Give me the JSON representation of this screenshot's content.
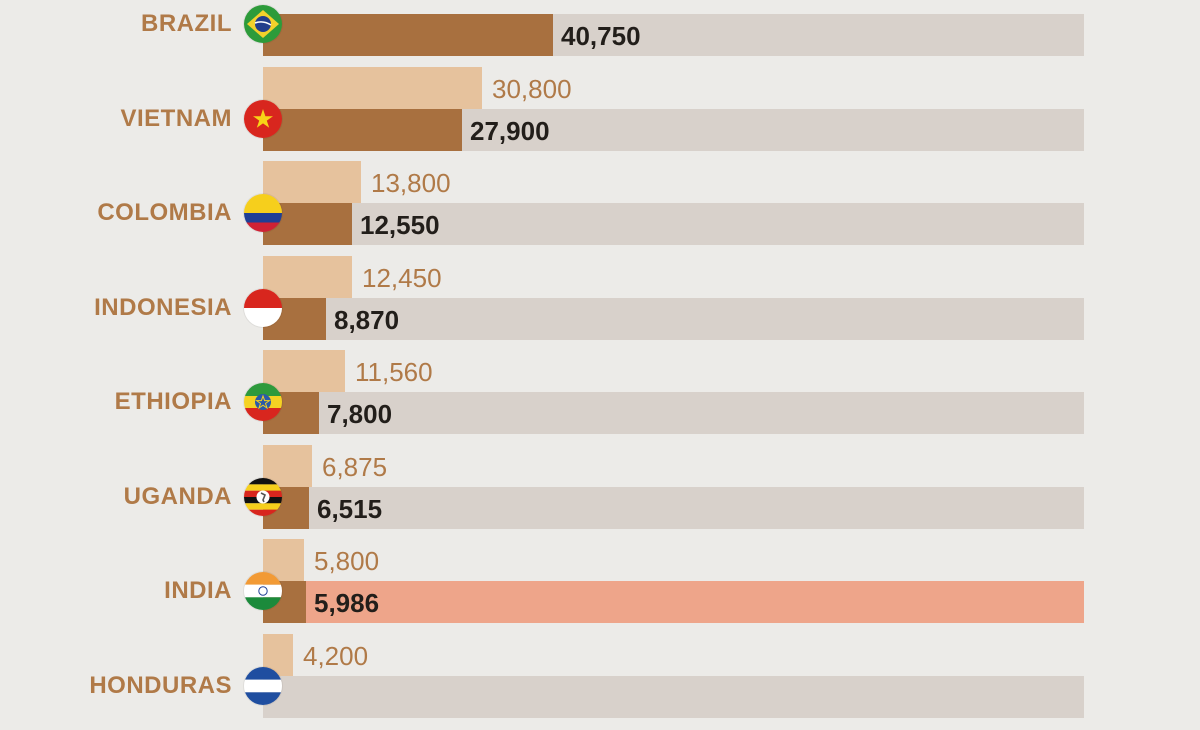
{
  "chart_data": {
    "type": "bar",
    "orientation": "horizontal",
    "categories": [
      "BRAZIL",
      "VIETNAM",
      "COLOMBIA",
      "INDONESIA",
      "ETHIOPIA",
      "UGANDA",
      "INDIA",
      "HONDURAS"
    ],
    "series": [
      {
        "values": [
          null,
          30800,
          13800,
          12450,
          11560,
          6875,
          5800,
          4200
        ],
        "labels": [
          "",
          "30,800",
          "13,800",
          "12,450",
          "11,560",
          "6,875",
          "5,800",
          "4,200"
        ],
        "color": "#e6c29d"
      },
      {
        "values": [
          40750,
          27900,
          12550,
          8870,
          7800,
          6515,
          5986,
          null
        ],
        "labels": [
          "40,750",
          "27,900",
          "12,550",
          "8,870",
          "7,800",
          "6,515",
          "5,986",
          ""
        ],
        "color": "#a8703f"
      }
    ],
    "highlight_category": "INDIA",
    "colors": {
      "track": "#d8d1cb",
      "highlight_track": "#eea58a",
      "label": "#b07a48"
    }
  },
  "flags": [
    "brazil-flag-icon",
    "vietnam-flag-icon",
    "colombia-flag-icon",
    "indonesia-flag-icon",
    "ethiopia-flag-icon",
    "uganda-flag-icon",
    "india-flag-icon",
    "honduras-flag-icon"
  ]
}
